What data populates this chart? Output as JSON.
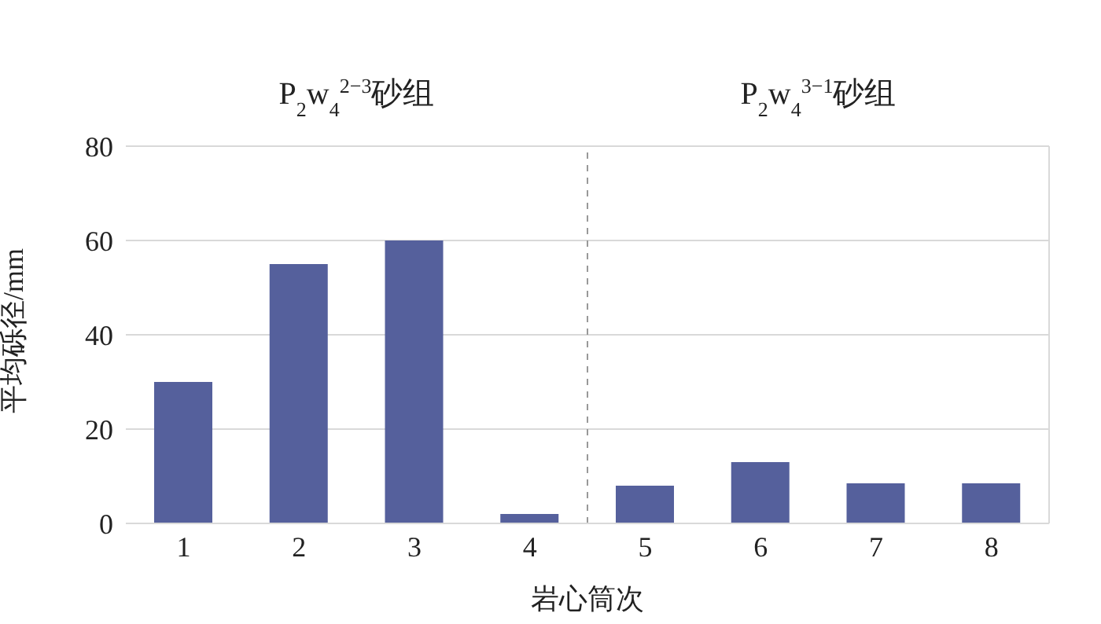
{
  "chart_data": {
    "type": "bar",
    "x": [
      1,
      2,
      3,
      4,
      5,
      6,
      7,
      8
    ],
    "values": [
      30,
      55,
      60,
      2,
      8,
      13,
      8.5,
      8.5
    ],
    "color": "#55609c",
    "xlim": [
      0.5,
      8.5
    ],
    "xticks": [
      1,
      2,
      3,
      4,
      5,
      6,
      7,
      8
    ],
    "ylim": [
      0,
      80
    ],
    "yticks": [
      0,
      20,
      40,
      60,
      80
    ],
    "xlabel": "岩心筒次",
    "ylabel": "平均砾径/mm",
    "grid": "y",
    "ref_lines": [
      {
        "axis": "x",
        "value": 4.5,
        "color": "#999999",
        "line_style": "dashed"
      }
    ],
    "annotations": [
      "P$_{2}$w$_{4}$$^{2−3}$砂组",
      "P$_{2}$w$_{4}$$^{3−1}$砂组"
    ]
  }
}
